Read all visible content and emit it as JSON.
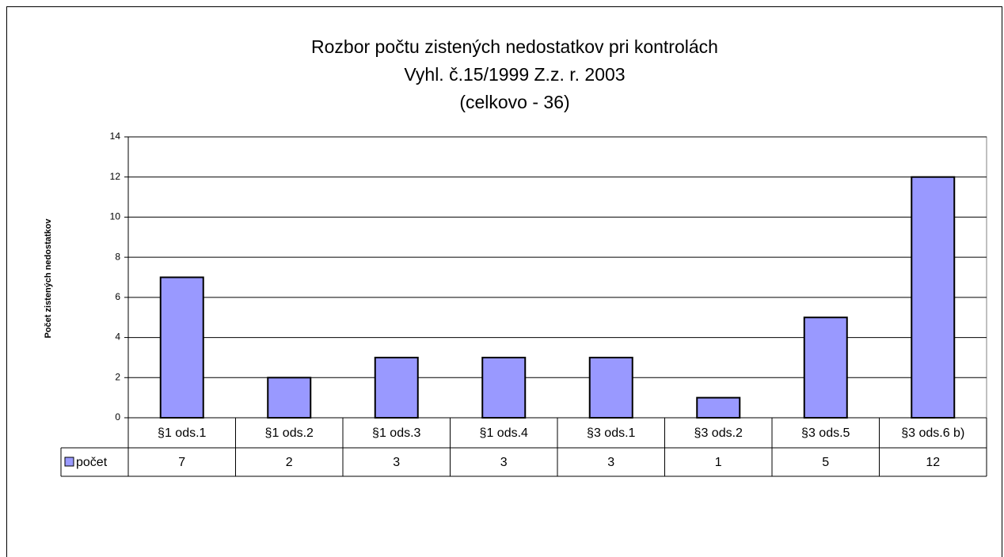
{
  "chart_data": {
    "type": "bar",
    "title": [
      "Rozbor počtu zistených nedostatkov pri kontrolách",
      "Vyhl. č.15/1999 Z.z. r. 2003",
      "(celkovo - 36)"
    ],
    "y_label": "Počet zistených  nedostatkov",
    "categories": [
      "§1 ods.1",
      "§1 ods.2",
      "§1 ods.3",
      "§1 ods.4",
      "§3 ods.1",
      "§3 ods.2",
      "§3 ods.5",
      "§3 ods.6 b)"
    ],
    "series": [
      {
        "name": "počet",
        "color": "#9999ff",
        "values": [
          7,
          2,
          3,
          3,
          3,
          1,
          5,
          12
        ]
      }
    ],
    "ylim": [
      0,
      14
    ],
    "yticks": [
      0,
      2,
      4,
      6,
      8,
      10,
      12,
      14
    ],
    "grid": true,
    "data_table": true
  }
}
